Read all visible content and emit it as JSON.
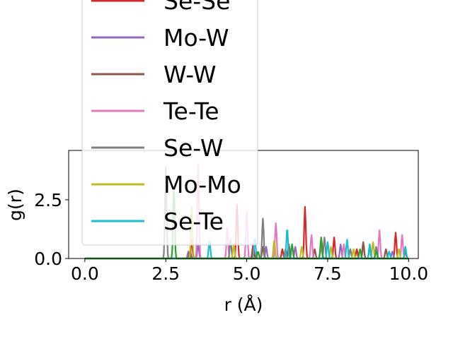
{
  "chart_data": {
    "type": "line",
    "xlabel": "r (Å)",
    "ylabel": "g(r)",
    "xlim": [
      -0.5,
      10.3
    ],
    "ylim": [
      0,
      4.6
    ],
    "xticks": [
      {
        "value": 0.0,
        "label": "0.0"
      },
      {
        "value": 2.5,
        "label": "2.5"
      },
      {
        "value": 5.0,
        "label": "5.0"
      },
      {
        "value": 7.5,
        "label": "7.5"
      },
      {
        "value": 10.0,
        "label": "10.0"
      }
    ],
    "yticks": [
      {
        "value": 0.0,
        "label": "0.0"
      },
      {
        "value": 2.5,
        "label": "2.5"
      }
    ],
    "grid": false,
    "legend": {
      "placement": "upper left",
      "visible_entries": [
        "Se-Se",
        "Mo-W",
        "W-W",
        "Te-Te",
        "Se-W",
        "Mo-Mo",
        "Se-Te"
      ]
    },
    "series": [
      {
        "name": "Se-Se",
        "color": "#d62728",
        "peaks": [
          [
            3.3,
            0.8
          ],
          [
            4.7,
            2.3
          ],
          [
            5.2,
            0.6
          ],
          [
            6.1,
            0.4
          ],
          [
            6.8,
            2.2
          ],
          [
            7.7,
            0.9
          ],
          [
            8.4,
            0.4
          ],
          [
            8.6,
            0.6
          ],
          [
            9.6,
            1.1
          ],
          [
            9.9,
            0.3
          ]
        ]
      },
      {
        "name": "Mo-W",
        "color": "#9467bd",
        "peaks": [
          [
            3.2,
            0.3
          ],
          [
            3.5,
            0.6
          ],
          [
            5.6,
            0.5
          ],
          [
            6.5,
            0.5
          ],
          [
            7.9,
            0.6
          ],
          [
            8.8,
            0.5
          ],
          [
            9.5,
            0.3
          ]
        ]
      },
      {
        "name": "W-W",
        "color": "#8c564b",
        "peaks": [
          [
            3.25,
            0.3
          ],
          [
            5.5,
            0.5
          ],
          [
            6.3,
            0.6
          ],
          [
            7.1,
            0.4
          ],
          [
            8.6,
            0.7
          ],
          [
            9.3,
            0.4
          ]
        ]
      },
      {
        "name": "Te-Te",
        "color": "#e377c2",
        "peaks": [
          [
            3.5,
            4.0
          ],
          [
            4.4,
            1.3
          ],
          [
            5.0,
            2.0
          ],
          [
            5.9,
            1.5
          ],
          [
            7.0,
            1.0
          ],
          [
            7.3,
            0.5
          ],
          [
            8.0,
            0.6
          ],
          [
            9.1,
            1.2
          ],
          [
            9.8,
            1.0
          ]
        ]
      },
      {
        "name": "Se-W",
        "color": "#7f7f7f",
        "peaks": [
          [
            2.5,
            3.9
          ],
          [
            4.5,
            0.8
          ],
          [
            5.5,
            1.7
          ],
          [
            6.2,
            0.4
          ],
          [
            7.4,
            0.9
          ],
          [
            8.2,
            0.4
          ],
          [
            9.0,
            0.5
          ]
        ]
      },
      {
        "name": "Mo-Mo",
        "color": "#bcbd22",
        "peaks": [
          [
            3.3,
            2.2
          ],
          [
            4.6,
            0.6
          ],
          [
            5.85,
            0.8
          ],
          [
            6.7,
            0.5
          ],
          [
            7.6,
            0.5
          ],
          [
            8.3,
            0.4
          ],
          [
            8.9,
            0.7
          ],
          [
            9.7,
            0.4
          ]
        ]
      },
      {
        "name": "Se-Te",
        "color": "#17becf",
        "peaks": [
          [
            3.85,
            0.8
          ],
          [
            5.25,
            0.9
          ],
          [
            6.25,
            1.3
          ],
          [
            7.5,
            0.7
          ],
          [
            8.1,
            0.8
          ],
          [
            8.8,
            0.6
          ],
          [
            9.4,
            0.3
          ],
          [
            9.9,
            0.5
          ]
        ]
      },
      {
        "name": "",
        "color": "#2ca02c",
        "peaks": [
          [
            2.75,
            3.1
          ],
          [
            5.35,
            0.3
          ],
          [
            6.4,
            0.6
          ],
          [
            7.3,
            0.9
          ],
          [
            8.5,
            0.4
          ],
          [
            9.0,
            0.3
          ]
        ]
      }
    ]
  }
}
